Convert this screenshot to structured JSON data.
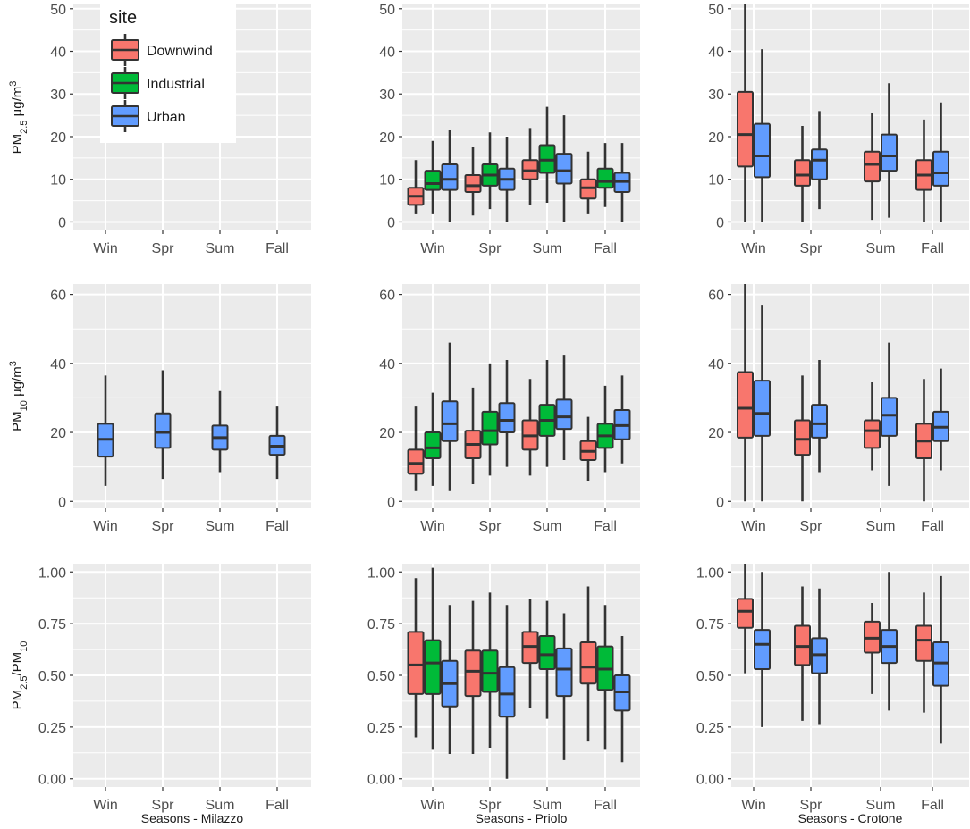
{
  "colors": {
    "panel_bg": "#EBEBEB",
    "grid": "#FFFFFF",
    "box_outline": "#333333",
    "Downwind": "#F8766D",
    "Industrial": "#00BA38",
    "Urban": "#619CFF"
  },
  "legend": {
    "title": "site",
    "items": [
      "Downwind",
      "Industrial",
      "Urban"
    ],
    "placement": "top-left of first panel"
  },
  "rows": [
    {
      "metric": "PM2.5",
      "ylabel": {
        "main": "PM",
        "sub": "2.5",
        "units": " µg/m",
        "sup": "3"
      },
      "ylim": [
        -2,
        51
      ],
      "ticks": [
        0,
        10,
        20,
        30,
        40,
        50
      ],
      "tick_labels": [
        "0",
        "10",
        "20",
        "30",
        "40",
        "50"
      ]
    },
    {
      "metric": "PM10",
      "ylabel": {
        "main": "PM",
        "sub": "10",
        "units": " µg/m",
        "sup": "3"
      },
      "ylim": [
        -2,
        63
      ],
      "ticks": [
        0,
        20,
        40,
        60
      ],
      "tick_labels": [
        "0",
        "20",
        "40",
        "60"
      ]
    },
    {
      "metric": "PM2.5/PM10",
      "ylabel": {
        "main": "PM",
        "sub": "2.5",
        "mid": "/PM",
        "sub2": "10"
      },
      "ylim": [
        -0.04,
        1.04
      ],
      "ticks": [
        0,
        0.25,
        0.5,
        0.75,
        1.0
      ],
      "tick_labels": [
        "0.00",
        "0.25",
        "0.50",
        "0.75",
        "1.00"
      ]
    }
  ],
  "columns": [
    {
      "location": "Milazzo",
      "xlabel": "Seasons - Milazzo"
    },
    {
      "location": "Priolo",
      "xlabel": "Seasons - Priolo"
    },
    {
      "location": "Crotone",
      "xlabel": "Seasons - Crotone"
    }
  ],
  "chart_data": {
    "type": "boxplot",
    "categories": [
      "Win",
      "Spr",
      "Sum",
      "Fall"
    ],
    "note": "box stats given as [whisker_low, q1, median, q3, whisker_high]",
    "panels": [
      {
        "row": 0,
        "col": 0,
        "series": []
      },
      {
        "row": 0,
        "col": 1,
        "series": [
          {
            "name": "Downwind",
            "boxes": [
              [
                2,
                4,
                6,
                8,
                14.5
              ],
              [
                1.5,
                7,
                8.5,
                11,
                17.5
              ],
              [
                4,
                10,
                12,
                14.5,
                22
              ],
              [
                2,
                5.5,
                8,
                10,
                16.5
              ]
            ]
          },
          {
            "name": "Industrial",
            "boxes": [
              [
                2,
                7.5,
                9,
                12,
                19
              ],
              [
                3,
                8.5,
                11,
                13.5,
                21
              ],
              [
                4.5,
                11.5,
                14.5,
                18,
                27
              ],
              [
                3.5,
                8,
                9.5,
                12.5,
                18.5
              ]
            ]
          },
          {
            "name": "Urban",
            "boxes": [
              [
                0,
                7.5,
                10,
                13.5,
                21.5
              ],
              [
                0,
                7.5,
                10,
                12.5,
                20
              ],
              [
                0,
                9,
                12,
                16,
                25
              ],
              [
                0,
                7,
                9.5,
                11.5,
                18.5
              ]
            ]
          }
        ]
      },
      {
        "row": 0,
        "col": 2,
        "series": [
          {
            "name": "Downwind",
            "boxes": [
              [
                0,
                13,
                20.5,
                30.5,
                52
              ],
              [
                0,
                8.5,
                11,
                14.5,
                22.5
              ],
              [
                0.5,
                9.5,
                13.5,
                16.5,
                25.5
              ],
              [
                0,
                7.5,
                11,
                14.5,
                24
              ]
            ]
          },
          {
            "name": "Urban",
            "boxes": [
              [
                0,
                10.5,
                15.5,
                23,
                40.5
              ],
              [
                3,
                10,
                14.5,
                17,
                26
              ],
              [
                1,
                12,
                15.5,
                20.5,
                32.5
              ],
              [
                0,
                8.5,
                11.5,
                16.5,
                28
              ]
            ]
          }
        ]
      },
      {
        "row": 1,
        "col": 0,
        "series": [
          {
            "name": "Urban",
            "boxes": [
              [
                4.5,
                13,
                18,
                22.5,
                36.5
              ],
              [
                6.5,
                15.5,
                20,
                25.5,
                38
              ],
              [
                8.5,
                15,
                18.5,
                22,
                32
              ],
              [
                6.5,
                13.5,
                16,
                19,
                27.5
              ]
            ]
          }
        ]
      },
      {
        "row": 1,
        "col": 1,
        "series": [
          {
            "name": "Downwind",
            "boxes": [
              [
                3,
                8,
                11,
                15,
                27.5
              ],
              [
                5,
                12.5,
                16.5,
                20.5,
                33
              ],
              [
                7.5,
                15,
                19,
                23.5,
                35.5
              ],
              [
                6,
                12,
                14.5,
                17.5,
                24.5
              ]
            ]
          },
          {
            "name": "Industrial",
            "boxes": [
              [
                4.5,
                12.5,
                15.5,
                20,
                31.5
              ],
              [
                7.5,
                16.5,
                20.5,
                26,
                40
              ],
              [
                10,
                19,
                23.5,
                28,
                41
              ],
              [
                8.5,
                15.5,
                19,
                22.5,
                33.5
              ]
            ]
          },
          {
            "name": "Urban",
            "boxes": [
              [
                3,
                17.5,
                22.5,
                29,
                46
              ],
              [
                10,
                20,
                23.5,
                28.5,
                41
              ],
              [
                12,
                21,
                24.5,
                29.5,
                42.5
              ],
              [
                11,
                18,
                22,
                26.5,
                36.5
              ]
            ]
          }
        ]
      },
      {
        "row": 1,
        "col": 2,
        "series": [
          {
            "name": "Downwind",
            "boxes": [
              [
                0,
                18.5,
                27,
                37.5,
                63
              ],
              [
                0,
                13.5,
                18,
                23.5,
                36.5
              ],
              [
                9,
                15.5,
                20.5,
                23.5,
                34.5
              ],
              [
                0,
                12.5,
                17.5,
                22.5,
                35.5
              ]
            ]
          },
          {
            "name": "Urban",
            "boxes": [
              [
                0,
                19,
                25.5,
                35,
                57
              ],
              [
                8.5,
                18.5,
                22.5,
                28,
                41
              ],
              [
                4.5,
                19,
                25,
                30,
                46
              ],
              [
                9,
                17.5,
                21.5,
                26,
                38.5
              ]
            ]
          }
        ]
      },
      {
        "row": 2,
        "col": 0,
        "series": []
      },
      {
        "row": 2,
        "col": 1,
        "series": [
          {
            "name": "Downwind",
            "boxes": [
              [
                0.2,
                0.41,
                0.55,
                0.71,
                0.97
              ],
              [
                0.12,
                0.4,
                0.52,
                0.62,
                0.86
              ],
              [
                0.34,
                0.56,
                0.64,
                0.71,
                0.87
              ],
              [
                0.18,
                0.46,
                0.54,
                0.66,
                0.93
              ]
            ]
          },
          {
            "name": "Industrial",
            "boxes": [
              [
                0.14,
                0.41,
                0.56,
                0.67,
                1.02
              ],
              [
                0.15,
                0.42,
                0.51,
                0.62,
                0.9
              ],
              [
                0.29,
                0.53,
                0.6,
                0.69,
                0.86
              ],
              [
                0.14,
                0.43,
                0.53,
                0.64,
                0.84
              ]
            ]
          },
          {
            "name": "Urban",
            "boxes": [
              [
                0.12,
                0.35,
                0.46,
                0.57,
                0.84
              ],
              [
                0.0,
                0.3,
                0.41,
                0.54,
                0.84
              ],
              [
                0.09,
                0.4,
                0.53,
                0.63,
                0.8
              ],
              [
                0.08,
                0.33,
                0.42,
                0.5,
                0.69
              ]
            ]
          }
        ]
      },
      {
        "row": 2,
        "col": 2,
        "series": [
          {
            "name": "Downwind",
            "boxes": [
              [
                0.51,
                0.73,
                0.81,
                0.87,
                1.04
              ],
              [
                0.28,
                0.55,
                0.64,
                0.74,
                0.93
              ],
              [
                0.41,
                0.61,
                0.68,
                0.76,
                0.85
              ],
              [
                0.32,
                0.57,
                0.67,
                0.74,
                0.9
              ]
            ]
          },
          {
            "name": "Urban",
            "boxes": [
              [
                0.25,
                0.53,
                0.65,
                0.72,
                1.0
              ],
              [
                0.26,
                0.51,
                0.6,
                0.68,
                0.92
              ],
              [
                0.33,
                0.56,
                0.64,
                0.72,
                1.0
              ],
              [
                0.17,
                0.45,
                0.56,
                0.66,
                0.98
              ]
            ]
          }
        ]
      }
    ]
  }
}
